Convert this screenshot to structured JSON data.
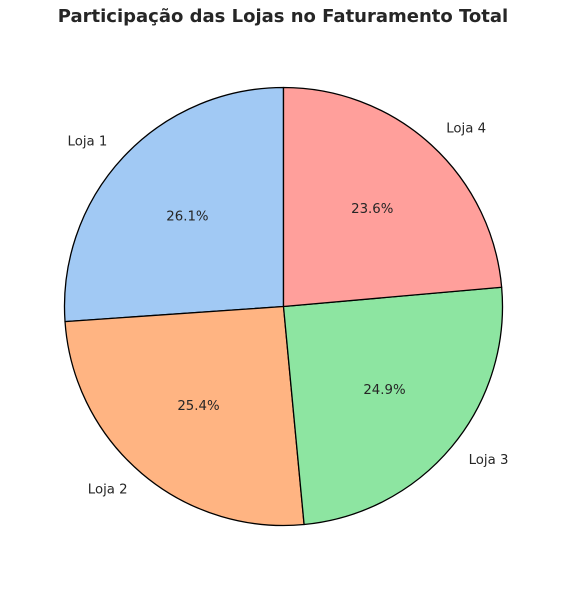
{
  "chart_data": {
    "type": "pie",
    "title": "Participação das Lojas no Faturamento Total",
    "categories": [
      "Loja 1",
      "Loja 2",
      "Loja 3",
      "Loja 4"
    ],
    "values": [
      26.1,
      25.4,
      24.9,
      23.6
    ],
    "value_labels": [
      "26.1%",
      "25.4%",
      "24.9%",
      "23.6%"
    ],
    "colors": [
      "#a1c9f4",
      "#ffb482",
      "#8de5a1",
      "#ff9f9b"
    ],
    "start_angle_deg": 90,
    "direction": "counterclockwise",
    "edge_color": "#000000"
  }
}
